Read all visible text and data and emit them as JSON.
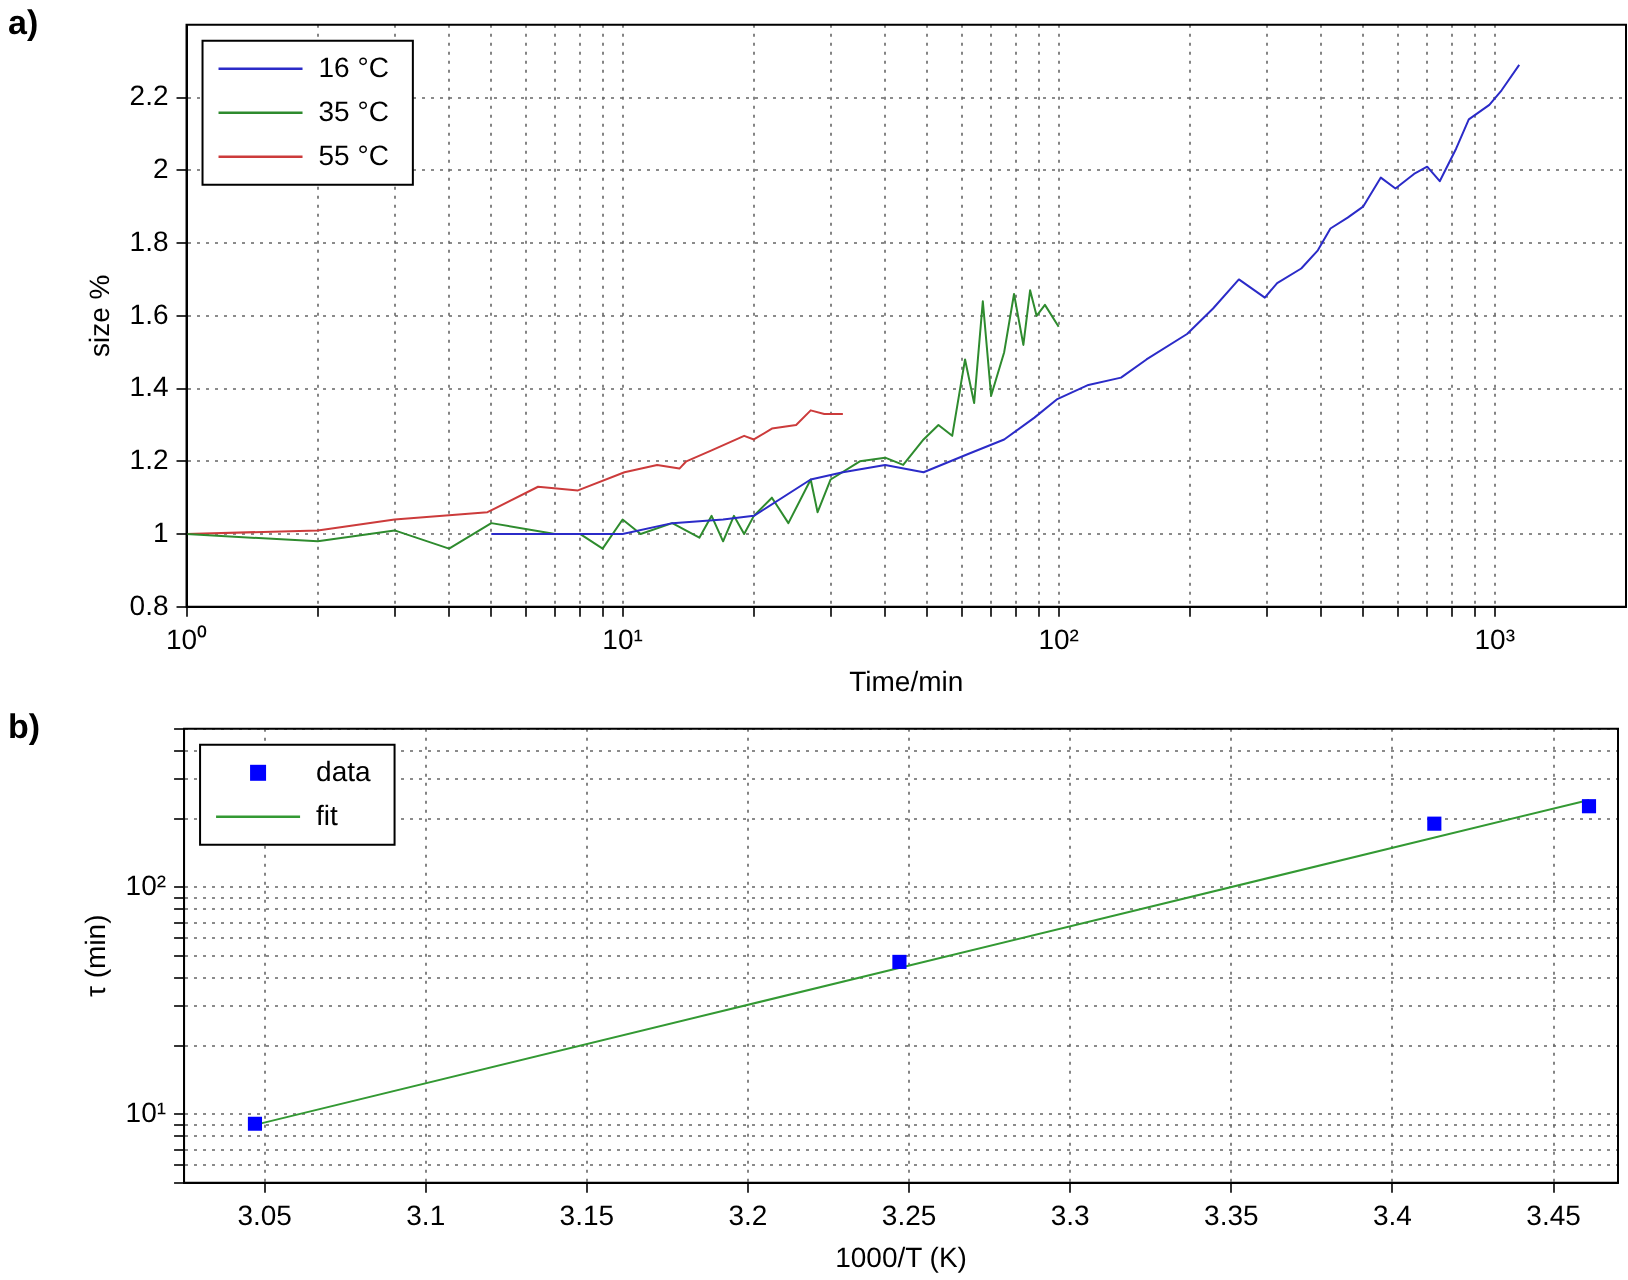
{
  "chart_data": [
    {
      "type": "line",
      "xlabel": "Time/min",
      "ylabel": "size %",
      "annotations": [
        "a)"
      ],
      "log": "x",
      "grid": true,
      "legend": "top left",
      "marker": "none",
      "line_style": "solid",
      "xlim": [
        1,
        2000
      ],
      "ylim": [
        0.8,
        2.4
      ],
      "xticks": [
        {
          "value": 1,
          "label": "10⁰"
        },
        {
          "value": 2,
          "label": null
        },
        {
          "value": 3,
          "label": null
        },
        {
          "value": 4,
          "label": null
        },
        {
          "value": 5,
          "label": null
        },
        {
          "value": 6,
          "label": null
        },
        {
          "value": 7,
          "label": null
        },
        {
          "value": 8,
          "label": null
        },
        {
          "value": 9,
          "label": null
        },
        {
          "value": 10,
          "label": "10¹"
        },
        {
          "value": 20,
          "label": null
        },
        {
          "value": 30,
          "label": null
        },
        {
          "value": 40,
          "label": null
        },
        {
          "value": 50,
          "label": null
        },
        {
          "value": 60,
          "label": null
        },
        {
          "value": 70,
          "label": null
        },
        {
          "value": 80,
          "label": null
        },
        {
          "value": 90,
          "label": null
        },
        {
          "value": 100,
          "label": "10²"
        },
        {
          "value": 200,
          "label": null
        },
        {
          "value": 300,
          "label": null
        },
        {
          "value": 400,
          "label": null
        },
        {
          "value": 500,
          "label": null
        },
        {
          "value": 600,
          "label": null
        },
        {
          "value": 700,
          "label": null
        },
        {
          "value": 800,
          "label": null
        },
        {
          "value": 900,
          "label": null
        },
        {
          "value": 1000,
          "label": "10³"
        }
      ],
      "yticks": [
        0.8,
        1,
        1.2,
        1.4,
        1.6,
        1.8,
        2,
        2.2
      ],
      "series": [
        {
          "name": "16 °C",
          "color": "#2b2bc8",
          "x": [
            5,
            7,
            10,
            13,
            17,
            20,
            27,
            32,
            40,
            49,
            62,
            75,
            88,
            99,
            117,
            139,
            159,
            197,
            226,
            259,
            297,
            317,
            360,
            393,
            420,
            460,
            499,
            548,
            592,
            653,
            700,
            748,
            816,
            872,
            972,
            1037,
            1138
          ],
          "values": [
            1,
            1,
            1,
            1.03,
            1.04,
            1.05,
            1.15,
            1.17,
            1.19,
            1.17,
            1.22,
            1.26,
            1.32,
            1.37,
            1.41,
            1.43,
            1.48,
            1.55,
            1.62,
            1.7,
            1.65,
            1.69,
            1.73,
            1.78,
            1.84,
            1.87,
            1.9,
            1.98,
            1.95,
            1.99,
            2.01,
            1.97,
            2.06,
            2.14,
            2.18,
            2.22,
            2.29
          ]
        },
        {
          "name": "35 °C",
          "color": "#2e8b2e",
          "x": [
            1,
            2,
            3,
            4,
            5,
            7,
            8,
            9,
            10,
            11,
            13,
            15,
            16,
            17,
            18,
            19,
            20,
            22,
            24,
            27,
            28,
            30,
            35,
            40,
            44,
            49,
            53,
            57,
            61,
            64,
            67,
            70,
            75,
            79,
            83,
            86,
            89,
            93,
            100
          ],
          "values": [
            1,
            0.98,
            1.01,
            0.96,
            1.03,
            1,
            1,
            0.96,
            1.04,
            1,
            1.03,
            0.99,
            1.05,
            0.98,
            1.05,
            1,
            1.05,
            1.1,
            1.03,
            1.15,
            1.06,
            1.15,
            1.2,
            1.21,
            1.19,
            1.26,
            1.3,
            1.27,
            1.48,
            1.36,
            1.64,
            1.38,
            1.5,
            1.66,
            1.52,
            1.67,
            1.6,
            1.63,
            1.57
          ]
        },
        {
          "name": "55 °C",
          "color": "#cc3b3b",
          "x": [
            1,
            2,
            3,
            4.9,
            6.4,
            7.9,
            10.1,
            12,
            13.5,
            14,
            16,
            19,
            20,
            22,
            25,
            27,
            29,
            32
          ],
          "values": [
            1,
            1.01,
            1.04,
            1.06,
            1.13,
            1.12,
            1.17,
            1.19,
            1.18,
            1.2,
            1.23,
            1.27,
            1.26,
            1.29,
            1.3,
            1.34,
            1.33,
            1.33
          ]
        }
      ]
    },
    {
      "type": "scatter",
      "xlabel": "1000/T (K)",
      "ylabel": "τ (min)",
      "annotations": [
        "b)"
      ],
      "log": "y",
      "grid": true,
      "legend": "top left",
      "xlim": [
        3.025,
        3.47
      ],
      "ylim": [
        5,
        500
      ],
      "xticks": [
        3.05,
        3.1,
        3.15,
        3.2,
        3.25,
        3.3,
        3.35,
        3.4,
        3.45
      ],
      "yticks": [
        {
          "value": 5,
          "label": null
        },
        {
          "value": 6,
          "label": null
        },
        {
          "value": 7,
          "label": null
        },
        {
          "value": 8,
          "label": null
        },
        {
          "value": 9,
          "label": null
        },
        {
          "value": 10,
          "label": "10¹"
        },
        {
          "value": 20,
          "label": null
        },
        {
          "value": 30,
          "label": null
        },
        {
          "value": 40,
          "label": null
        },
        {
          "value": 50,
          "label": null
        },
        {
          "value": 60,
          "label": null
        },
        {
          "value": 70,
          "label": null
        },
        {
          "value": 80,
          "label": null
        },
        {
          "value": 90,
          "label": null
        },
        {
          "value": 100,
          "label": "10²"
        },
        {
          "value": 200,
          "label": null
        },
        {
          "value": 300,
          "label": null
        },
        {
          "value": 400,
          "label": null
        },
        {
          "value": 500,
          "label": null
        }
      ],
      "series": [
        {
          "name": "data",
          "type": "scatter",
          "marker": "square",
          "color": "#0000ff",
          "x": [
            3.047,
            3.247,
            3.413,
            3.461
          ],
          "values": [
            9.1,
            47,
            191,
            228
          ]
        },
        {
          "name": "fit",
          "type": "line",
          "marker": "none",
          "line_style": "solid",
          "color": "#339933",
          "x": [
            3.047,
            3.461
          ],
          "values": [
            9,
            243
          ]
        }
      ]
    }
  ]
}
